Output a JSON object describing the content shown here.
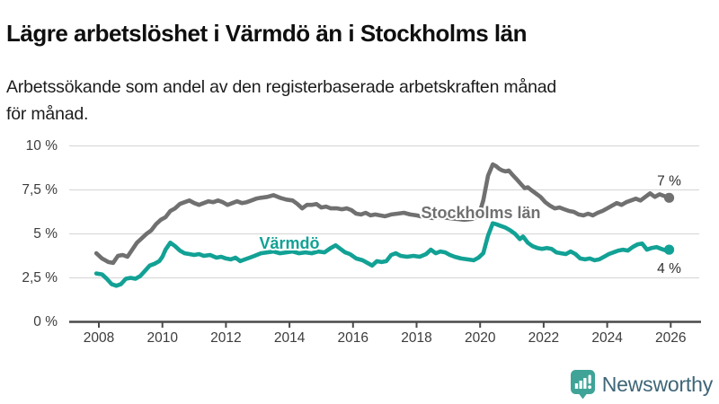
{
  "header": {
    "title": "Lägre arbetslöshet i Värmdö än i Stockholms län",
    "subtitle_line1": "Arbetssökande som andel av den registerbaserade arbetskraften månad",
    "subtitle_line2": "för månad."
  },
  "footer": {
    "brand": "Newsworthy",
    "logo_icon": "newsworthy-bubble-bar-chart-icon"
  },
  "colors": {
    "series_stockholm": "#707070",
    "series_varmdo": "#12a195",
    "grid": "#dadada",
    "axis": "#4a4a4a",
    "axis_text": "#3c3c3c",
    "annotation_text": "#2e2e2e",
    "logo_icon": "#3fa497",
    "logo_text": "#3e6577",
    "halo": "#ffffff"
  },
  "chart_data": {
    "type": "line",
    "title": "Lägre arbetslöshet i Värmdö än i Stockholms län",
    "subtitle": "Arbetssökande som andel av den registerbaserade arbetskraften månad för månad.",
    "x_axis": {
      "ticks": [
        2008,
        2010,
        2012,
        2014,
        2016,
        2018,
        2020,
        2022,
        2024,
        2026
      ],
      "range": [
        2007.1,
        2026.9
      ],
      "grid": false
    },
    "y_axis": {
      "unit": "%",
      "range": [
        0,
        10
      ],
      "grid": true,
      "ticks": [
        {
          "value": 0,
          "label": "0 %"
        },
        {
          "value": 2.5,
          "label": "2,5 %"
        },
        {
          "value": 5,
          "label": "5 %"
        },
        {
          "value": 7.5,
          "label": "7,5 %"
        },
        {
          "value": 10,
          "label": "10 %"
        }
      ]
    },
    "legend_position": "inline-labels",
    "series": [
      {
        "id": "stockholms-lan",
        "name": "Stockholms län",
        "color": "#707070",
        "end_label": "7 %",
        "end_value": 7.0,
        "points": [
          [
            2007.92,
            3.9
          ],
          [
            2008.1,
            3.6
          ],
          [
            2008.3,
            3.4
          ],
          [
            2008.45,
            3.35
          ],
          [
            2008.6,
            3.75
          ],
          [
            2008.75,
            3.8
          ],
          [
            2008.9,
            3.7
          ],
          [
            2009.05,
            4.1
          ],
          [
            2009.2,
            4.5
          ],
          [
            2009.35,
            4.75
          ],
          [
            2009.5,
            5.0
          ],
          [
            2009.65,
            5.2
          ],
          [
            2009.8,
            5.55
          ],
          [
            2009.95,
            5.8
          ],
          [
            2010.1,
            5.95
          ],
          [
            2010.25,
            6.3
          ],
          [
            2010.4,
            6.45
          ],
          [
            2010.55,
            6.7
          ],
          [
            2010.7,
            6.8
          ],
          [
            2010.85,
            6.9
          ],
          [
            2011.0,
            6.75
          ],
          [
            2011.15,
            6.65
          ],
          [
            2011.3,
            6.75
          ],
          [
            2011.45,
            6.85
          ],
          [
            2011.6,
            6.8
          ],
          [
            2011.75,
            6.9
          ],
          [
            2011.9,
            6.8
          ],
          [
            2012.05,
            6.65
          ],
          [
            2012.2,
            6.75
          ],
          [
            2012.35,
            6.85
          ],
          [
            2012.5,
            6.75
          ],
          [
            2012.65,
            6.8
          ],
          [
            2012.8,
            6.9
          ],
          [
            2012.95,
            7.0
          ],
          [
            2013.1,
            7.05
          ],
          [
            2013.3,
            7.1
          ],
          [
            2013.5,
            7.2
          ],
          [
            2013.7,
            7.05
          ],
          [
            2013.9,
            6.95
          ],
          [
            2014.1,
            6.9
          ],
          [
            2014.25,
            6.7
          ],
          [
            2014.4,
            6.45
          ],
          [
            2014.55,
            6.65
          ],
          [
            2014.7,
            6.65
          ],
          [
            2014.85,
            6.7
          ],
          [
            2015.0,
            6.5
          ],
          [
            2015.15,
            6.55
          ],
          [
            2015.3,
            6.45
          ],
          [
            2015.5,
            6.45
          ],
          [
            2015.65,
            6.4
          ],
          [
            2015.8,
            6.45
          ],
          [
            2015.95,
            6.35
          ],
          [
            2016.1,
            6.15
          ],
          [
            2016.25,
            6.1
          ],
          [
            2016.4,
            6.2
          ],
          [
            2016.55,
            6.05
          ],
          [
            2016.7,
            6.1
          ],
          [
            2016.85,
            6.05
          ],
          [
            2017.0,
            6.0
          ],
          [
            2017.2,
            6.1
          ],
          [
            2017.4,
            6.15
          ],
          [
            2017.6,
            6.2
          ],
          [
            2017.8,
            6.1
          ],
          [
            2018.0,
            6.05
          ],
          [
            2018.25,
            5.95
          ],
          [
            2018.5,
            5.9
          ],
          [
            2018.75,
            5.95
          ],
          [
            2019.0,
            5.9
          ],
          [
            2019.25,
            5.85
          ],
          [
            2019.5,
            5.8
          ],
          [
            2019.75,
            5.85
          ],
          [
            2019.95,
            6.0
          ],
          [
            2020.1,
            6.9
          ],
          [
            2020.25,
            8.3
          ],
          [
            2020.4,
            8.95
          ],
          [
            2020.5,
            8.85
          ],
          [
            2020.6,
            8.7
          ],
          [
            2020.7,
            8.6
          ],
          [
            2020.8,
            8.55
          ],
          [
            2020.9,
            8.6
          ],
          [
            2021.0,
            8.4
          ],
          [
            2021.15,
            8.1
          ],
          [
            2021.3,
            7.8
          ],
          [
            2021.4,
            7.6
          ],
          [
            2021.5,
            7.65
          ],
          [
            2021.6,
            7.5
          ],
          [
            2021.75,
            7.3
          ],
          [
            2021.9,
            7.1
          ],
          [
            2022.05,
            6.8
          ],
          [
            2022.2,
            6.6
          ],
          [
            2022.35,
            6.45
          ],
          [
            2022.5,
            6.5
          ],
          [
            2022.65,
            6.4
          ],
          [
            2022.8,
            6.3
          ],
          [
            2022.95,
            6.25
          ],
          [
            2023.1,
            6.1
          ],
          [
            2023.25,
            6.05
          ],
          [
            2023.4,
            6.15
          ],
          [
            2023.55,
            6.05
          ],
          [
            2023.7,
            6.2
          ],
          [
            2023.85,
            6.3
          ],
          [
            2024.0,
            6.45
          ],
          [
            2024.15,
            6.6
          ],
          [
            2024.3,
            6.75
          ],
          [
            2024.45,
            6.65
          ],
          [
            2024.6,
            6.8
          ],
          [
            2024.75,
            6.9
          ],
          [
            2024.9,
            7.0
          ],
          [
            2025.05,
            6.9
          ],
          [
            2025.2,
            7.1
          ],
          [
            2025.35,
            7.3
          ],
          [
            2025.5,
            7.1
          ],
          [
            2025.65,
            7.25
          ],
          [
            2025.8,
            7.15
          ],
          [
            2025.95,
            7.05
          ]
        ]
      },
      {
        "id": "varmdo",
        "name": "Värmdö",
        "color": "#12a195",
        "end_label": "4 %",
        "end_value": 4.0,
        "points": [
          [
            2007.92,
            2.75
          ],
          [
            2008.1,
            2.7
          ],
          [
            2008.25,
            2.45
          ],
          [
            2008.4,
            2.15
          ],
          [
            2008.55,
            2.05
          ],
          [
            2008.7,
            2.15
          ],
          [
            2008.85,
            2.45
          ],
          [
            2009.0,
            2.5
          ],
          [
            2009.15,
            2.45
          ],
          [
            2009.3,
            2.6
          ],
          [
            2009.45,
            2.9
          ],
          [
            2009.6,
            3.2
          ],
          [
            2009.75,
            3.3
          ],
          [
            2009.9,
            3.45
          ],
          [
            2010.0,
            3.7
          ],
          [
            2010.1,
            4.1
          ],
          [
            2010.25,
            4.5
          ],
          [
            2010.4,
            4.3
          ],
          [
            2010.55,
            4.05
          ],
          [
            2010.7,
            3.9
          ],
          [
            2010.85,
            3.85
          ],
          [
            2011.0,
            3.8
          ],
          [
            2011.15,
            3.85
          ],
          [
            2011.3,
            3.75
          ],
          [
            2011.5,
            3.8
          ],
          [
            2011.7,
            3.65
          ],
          [
            2011.85,
            3.7
          ],
          [
            2012.0,
            3.6
          ],
          [
            2012.15,
            3.55
          ],
          [
            2012.3,
            3.65
          ],
          [
            2012.45,
            3.45
          ],
          [
            2012.6,
            3.55
          ],
          [
            2012.75,
            3.65
          ],
          [
            2012.9,
            3.75
          ],
          [
            2013.1,
            3.9
          ],
          [
            2013.3,
            3.95
          ],
          [
            2013.5,
            4.0
          ],
          [
            2013.7,
            3.9
          ],
          [
            2013.9,
            3.95
          ],
          [
            2014.1,
            4.0
          ],
          [
            2014.3,
            3.9
          ],
          [
            2014.5,
            3.95
          ],
          [
            2014.7,
            3.9
          ],
          [
            2014.9,
            4.0
          ],
          [
            2015.1,
            3.95
          ],
          [
            2015.3,
            4.2
          ],
          [
            2015.45,
            4.35
          ],
          [
            2015.6,
            4.15
          ],
          [
            2015.75,
            3.95
          ],
          [
            2015.9,
            3.85
          ],
          [
            2016.1,
            3.6
          ],
          [
            2016.3,
            3.5
          ],
          [
            2016.45,
            3.35
          ],
          [
            2016.6,
            3.2
          ],
          [
            2016.75,
            3.45
          ],
          [
            2016.9,
            3.4
          ],
          [
            2017.05,
            3.45
          ],
          [
            2017.2,
            3.8
          ],
          [
            2017.35,
            3.9
          ],
          [
            2017.5,
            3.75
          ],
          [
            2017.7,
            3.7
          ],
          [
            2017.9,
            3.75
          ],
          [
            2018.1,
            3.7
          ],
          [
            2018.3,
            3.85
          ],
          [
            2018.45,
            4.1
          ],
          [
            2018.6,
            3.9
          ],
          [
            2018.75,
            4.0
          ],
          [
            2018.9,
            3.95
          ],
          [
            2019.05,
            3.8
          ],
          [
            2019.2,
            3.7
          ],
          [
            2019.4,
            3.6
          ],
          [
            2019.6,
            3.55
          ],
          [
            2019.8,
            3.5
          ],
          [
            2019.95,
            3.65
          ],
          [
            2020.1,
            3.9
          ],
          [
            2020.25,
            4.9
          ],
          [
            2020.4,
            5.6
          ],
          [
            2020.5,
            5.55
          ],
          [
            2020.65,
            5.45
          ],
          [
            2020.8,
            5.35
          ],
          [
            2020.95,
            5.2
          ],
          [
            2021.1,
            5.0
          ],
          [
            2021.25,
            4.7
          ],
          [
            2021.35,
            4.85
          ],
          [
            2021.5,
            4.5
          ],
          [
            2021.65,
            4.3
          ],
          [
            2021.8,
            4.2
          ],
          [
            2021.95,
            4.15
          ],
          [
            2022.1,
            4.2
          ],
          [
            2022.25,
            4.15
          ],
          [
            2022.4,
            3.95
          ],
          [
            2022.55,
            3.9
          ],
          [
            2022.7,
            3.85
          ],
          [
            2022.85,
            4.0
          ],
          [
            2023.0,
            3.85
          ],
          [
            2023.15,
            3.6
          ],
          [
            2023.3,
            3.55
          ],
          [
            2023.45,
            3.6
          ],
          [
            2023.6,
            3.5
          ],
          [
            2023.75,
            3.55
          ],
          [
            2023.9,
            3.7
          ],
          [
            2024.05,
            3.85
          ],
          [
            2024.2,
            3.95
          ],
          [
            2024.35,
            4.05
          ],
          [
            2024.5,
            4.1
          ],
          [
            2024.65,
            4.05
          ],
          [
            2024.8,
            4.25
          ],
          [
            2024.95,
            4.4
          ],
          [
            2025.1,
            4.45
          ],
          [
            2025.25,
            4.1
          ],
          [
            2025.4,
            4.2
          ],
          [
            2025.55,
            4.25
          ],
          [
            2025.7,
            4.15
          ],
          [
            2025.85,
            4.05
          ],
          [
            2025.95,
            4.1
          ]
        ]
      }
    ]
  }
}
